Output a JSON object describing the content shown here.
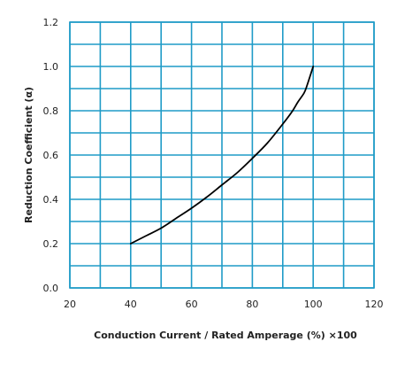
{
  "chart_data": {
    "type": "line",
    "title": "",
    "xlabel": "Conduction Current / Rated Amperage (%) ×100",
    "ylabel": "Reduction Coefficient (α)",
    "xlim": [
      20,
      120
    ],
    "ylim": [
      0,
      1.2
    ],
    "x_ticks": [
      "20",
      "40",
      "60",
      "80",
      "100",
      "120"
    ],
    "x_tick_values": [
      20,
      40,
      60,
      80,
      100,
      120
    ],
    "y_ticks": [
      "0.0",
      "0.2",
      "0.4",
      "0.6",
      "0.8",
      "1.0",
      "1.2"
    ],
    "y_tick_values": [
      0,
      0.2,
      0.4,
      0.6,
      0.8,
      1.0,
      1.2
    ],
    "x_grid_step": 10,
    "y_grid_step": 0.1,
    "grid": true,
    "legend": "none",
    "colors": {
      "grid": "#1f9bc7",
      "line": "#000000"
    },
    "series": [
      {
        "x": [
          40,
          45,
          50,
          55,
          60,
          65,
          70,
          75,
          80,
          85,
          90,
          93,
          95,
          97,
          98,
          100
        ],
        "y": [
          0.2,
          0.235,
          0.27,
          0.315,
          0.36,
          0.41,
          0.465,
          0.52,
          0.585,
          0.655,
          0.74,
          0.795,
          0.84,
          0.88,
          0.915,
          1.0
        ]
      }
    ]
  }
}
